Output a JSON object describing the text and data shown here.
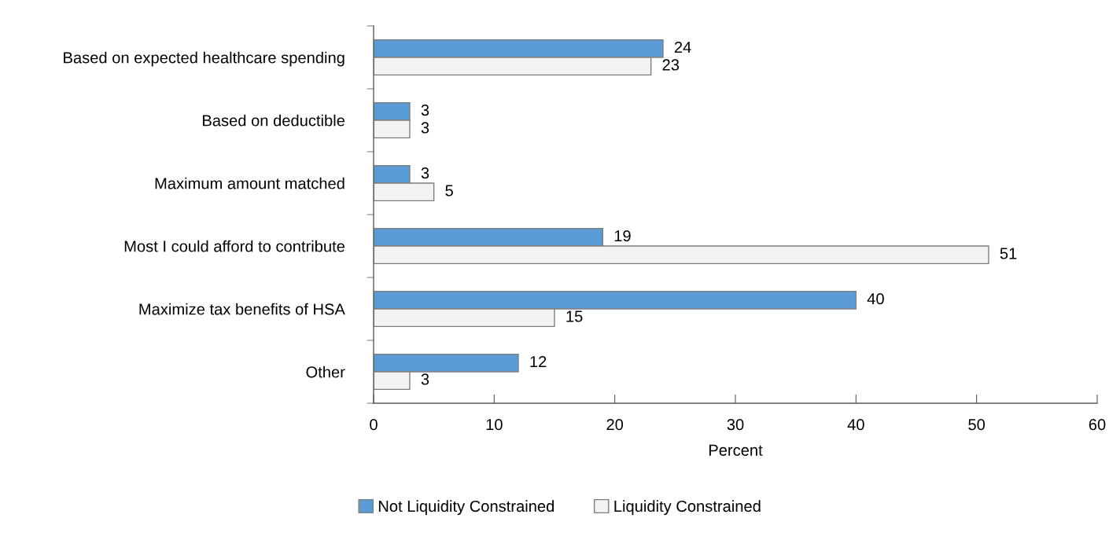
{
  "chart_data": {
    "type": "bar",
    "orientation": "horizontal",
    "categories": [
      "Based on expected healthcare spending",
      "Based on deductible",
      "Maximum amount matched",
      "Most I could afford to contribute",
      "Maximize tax benefits of HSA",
      "Other"
    ],
    "series": [
      {
        "name": "Not Liquidity Constrained",
        "color": "#5b9bd5",
        "values": [
          24,
          3,
          3,
          19,
          40,
          12
        ]
      },
      {
        "name": "Liquidity Constrained",
        "color": "#f2f2f2",
        "values": [
          23,
          3,
          5,
          51,
          15,
          3
        ]
      }
    ],
    "xlabel": "Percent",
    "xlim": [
      0,
      60
    ],
    "xticks": [
      0,
      10,
      20,
      30,
      40,
      50,
      60
    ],
    "data_labels": true,
    "legend": "bottom",
    "grid": false
  }
}
